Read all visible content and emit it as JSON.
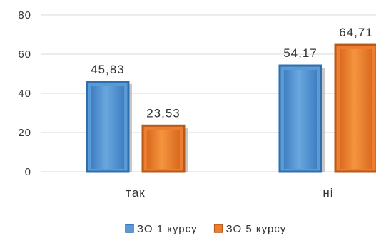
{
  "chart_data": {
    "type": "bar",
    "categories": [
      "так",
      "ні"
    ],
    "series": [
      {
        "name": "ЗО 1 курсу",
        "values": [
          45.83,
          54.17
        ],
        "labels": [
          "45,83",
          "54,17"
        ],
        "color": "#5b9bd5",
        "edge_color": "#2e6fb0"
      },
      {
        "name": "ЗО 5 курсу",
        "values": [
          23.53,
          64.71
        ],
        "labels": [
          "23,53",
          "64,71"
        ],
        "color": "#ed7d31",
        "edge_color": "#b85a17"
      }
    ],
    "yticks": [
      0,
      20,
      40,
      60,
      80
    ],
    "ylim": [
      0,
      80
    ],
    "grid": true,
    "legend": "bottom-center"
  }
}
